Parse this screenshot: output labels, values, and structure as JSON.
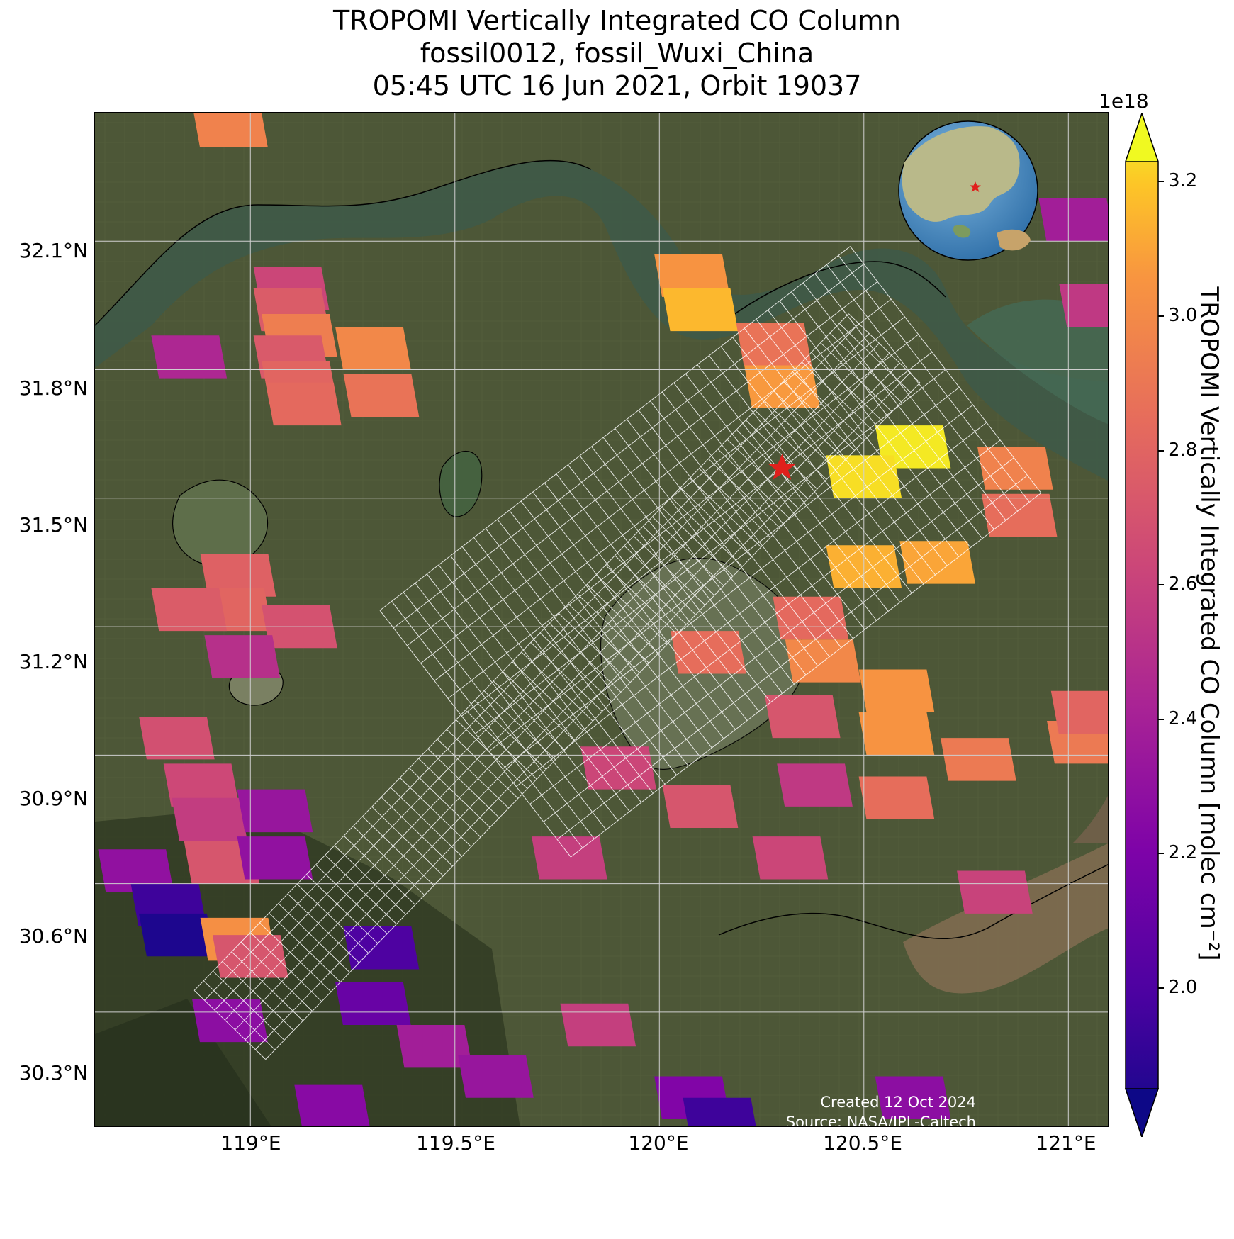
{
  "title": {
    "line1": "TROPOMI Vertically Integrated CO Column",
    "line2": "fossil0012, fossil_Wuxi_China",
    "line3": "05:45 UTC 16 Jun 2021, Orbit 19037"
  },
  "axes": {
    "lat_labels": [
      "32.1°N",
      "31.8°N",
      "31.5°N",
      "31.2°N",
      "30.9°N",
      "30.6°N",
      "30.3°N"
    ],
    "lon_labels": [
      "119°E",
      "119.5°E",
      "120°E",
      "120.5°E",
      "121°E"
    ],
    "lon_range": [
      118.62,
      121.1
    ],
    "lat_range": [
      30.03,
      32.4
    ]
  },
  "colorbar": {
    "exponent": "1e18",
    "label": "TROPOMI Vertically Integrated CO Column [molec cm⁻²]",
    "ticks": [
      "3.2",
      "3.0",
      "2.8",
      "2.6",
      "2.4",
      "2.2",
      "2.0"
    ],
    "range": [
      1.85,
      3.23
    ],
    "colormap": "plasma"
  },
  "site_marker": {
    "label": "Wuxi",
    "lon": 120.3,
    "lat": 31.57,
    "color": "#e0201c"
  },
  "inset_globe": {
    "description_icon": "globe-icon"
  },
  "credit": {
    "line1": "Created 12 Oct 2024",
    "line2": "Source: NASA/JPL-Caltech"
  },
  "chart_data": {
    "type": "heatmap",
    "variable": "CO column (1e18 molec cm-2)",
    "pixels": [
      {
        "lon": 118.95,
        "lat": 32.37,
        "v": 2.92
      },
      {
        "lon": 120.08,
        "lat": 32.02,
        "v": 3.0
      },
      {
        "lon": 120.1,
        "lat": 31.94,
        "v": 3.1
      },
      {
        "lon": 120.28,
        "lat": 31.86,
        "v": 2.85
      },
      {
        "lon": 120.3,
        "lat": 31.76,
        "v": 3.02
      },
      {
        "lon": 119.1,
        "lat": 31.99,
        "v": 2.62
      },
      {
        "lon": 119.1,
        "lat": 31.94,
        "v": 2.73
      },
      {
        "lon": 119.12,
        "lat": 31.88,
        "v": 2.9
      },
      {
        "lon": 119.1,
        "lat": 31.83,
        "v": 2.72
      },
      {
        "lon": 119.12,
        "lat": 31.77,
        "v": 2.78
      },
      {
        "lon": 119.13,
        "lat": 31.72,
        "v": 2.8
      },
      {
        "lon": 118.85,
        "lat": 31.83,
        "v": 2.45
      },
      {
        "lon": 119.3,
        "lat": 31.85,
        "v": 2.95
      },
      {
        "lon": 119.32,
        "lat": 31.74,
        "v": 2.85
      },
      {
        "lon": 120.62,
        "lat": 31.62,
        "v": 3.2
      },
      {
        "lon": 120.5,
        "lat": 31.55,
        "v": 3.18
      },
      {
        "lon": 120.87,
        "lat": 31.57,
        "v": 2.92
      },
      {
        "lon": 120.88,
        "lat": 31.46,
        "v": 2.82
      },
      {
        "lon": 120.5,
        "lat": 31.34,
        "v": 3.08
      },
      {
        "lon": 120.68,
        "lat": 31.35,
        "v": 3.05
      },
      {
        "lon": 120.37,
        "lat": 31.22,
        "v": 2.8
      },
      {
        "lon": 120.4,
        "lat": 31.12,
        "v": 2.95
      },
      {
        "lon": 120.12,
        "lat": 31.14,
        "v": 2.82
      },
      {
        "lon": 120.58,
        "lat": 31.05,
        "v": 3.0
      },
      {
        "lon": 120.58,
        "lat": 30.95,
        "v": 3.0
      },
      {
        "lon": 120.35,
        "lat": 30.99,
        "v": 2.7
      },
      {
        "lon": 118.97,
        "lat": 31.32,
        "v": 2.76
      },
      {
        "lon": 118.96,
        "lat": 31.24,
        "v": 2.78
      },
      {
        "lon": 118.85,
        "lat": 31.24,
        "v": 2.73
      },
      {
        "lon": 119.12,
        "lat": 31.2,
        "v": 2.68
      },
      {
        "lon": 118.98,
        "lat": 31.13,
        "v": 2.5
      },
      {
        "lon": 118.82,
        "lat": 30.94,
        "v": 2.67
      },
      {
        "lon": 118.88,
        "lat": 30.83,
        "v": 2.63
      },
      {
        "lon": 118.9,
        "lat": 30.75,
        "v": 2.57
      },
      {
        "lon": 118.93,
        "lat": 30.65,
        "v": 2.7
      },
      {
        "lon": 119.06,
        "lat": 30.77,
        "v": 2.35
      },
      {
        "lon": 119.06,
        "lat": 30.66,
        "v": 2.32
      },
      {
        "lon": 118.72,
        "lat": 30.63,
        "v": 2.32
      },
      {
        "lon": 118.8,
        "lat": 30.55,
        "v": 2.0
      },
      {
        "lon": 118.82,
        "lat": 30.48,
        "v": 1.9
      },
      {
        "lon": 118.97,
        "lat": 30.47,
        "v": 2.98
      },
      {
        "lon": 119.0,
        "lat": 30.43,
        "v": 2.7
      },
      {
        "lon": 119.32,
        "lat": 30.45,
        "v": 2.05
      },
      {
        "lon": 119.3,
        "lat": 30.32,
        "v": 2.15
      },
      {
        "lon": 118.95,
        "lat": 30.28,
        "v": 2.3
      },
      {
        "lon": 119.45,
        "lat": 30.22,
        "v": 2.4
      },
      {
        "lon": 119.6,
        "lat": 30.15,
        "v": 2.35
      },
      {
        "lon": 119.2,
        "lat": 30.08,
        "v": 2.28
      },
      {
        "lon": 119.85,
        "lat": 30.27,
        "v": 2.58
      },
      {
        "lon": 120.08,
        "lat": 30.1,
        "v": 2.25
      },
      {
        "lon": 120.15,
        "lat": 30.05,
        "v": 2.0
      },
      {
        "lon": 120.62,
        "lat": 30.1,
        "v": 2.3
      },
      {
        "lon": 119.9,
        "lat": 30.87,
        "v": 2.62
      },
      {
        "lon": 120.1,
        "lat": 30.78,
        "v": 2.7
      },
      {
        "lon": 120.38,
        "lat": 30.83,
        "v": 2.55
      },
      {
        "lon": 120.58,
        "lat": 30.8,
        "v": 2.82
      },
      {
        "lon": 120.78,
        "lat": 30.89,
        "v": 2.88
      },
      {
        "lon": 121.04,
        "lat": 30.93,
        "v": 2.88
      },
      {
        "lon": 121.05,
        "lat": 31.0,
        "v": 2.78
      },
      {
        "lon": 119.78,
        "lat": 30.66,
        "v": 2.58
      },
      {
        "lon": 120.32,
        "lat": 30.66,
        "v": 2.62
      },
      {
        "lon": 120.82,
        "lat": 30.58,
        "v": 2.6
      },
      {
        "lon": 121.02,
        "lat": 32.15,
        "v": 2.4
      },
      {
        "lon": 121.07,
        "lat": 31.95,
        "v": 2.55
      }
    ]
  }
}
